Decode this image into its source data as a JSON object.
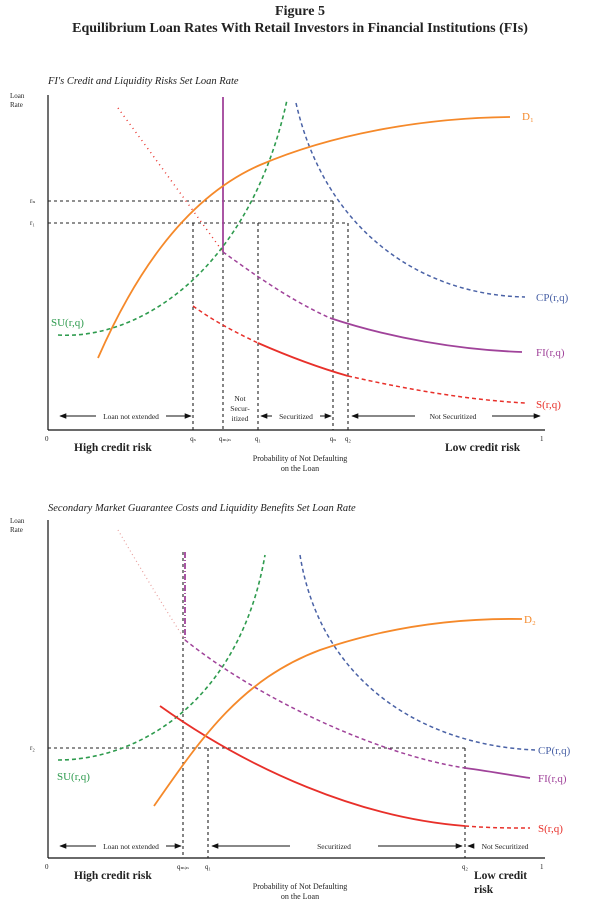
{
  "figure": {
    "title_line1": "Figure 5",
    "title_line2": "Equilibrium Loan Rates With Retail Investors in Financial Institutions (FIs)"
  },
  "colors": {
    "demand": "#F5892A",
    "su": "#2E9B4E",
    "cp": "#4A62A6",
    "fi": "#A0439A",
    "s": "#E8302A",
    "guide": "#222222",
    "axis": "#111111"
  },
  "panel1": {
    "title": "FI's Credit and Liquidity Risks Set Loan Rate",
    "y_axis_label_1": "Loan",
    "y_axis_label_2": "Rate",
    "origin": "0",
    "x_end": "1",
    "r_labels": [
      "rₙ",
      "r₁"
    ],
    "q_labels": [
      "qₛ",
      "qₘᵢₙ",
      "q₁",
      "qₙ",
      "q₂"
    ],
    "regions": [
      "Loan not extended",
      "Not",
      "Secur-",
      "itized",
      "Securitized",
      "Not Securitized"
    ],
    "high_risk": "High credit risk",
    "low_risk": "Low credit risk",
    "x_axis_label_1": "Probability of Not Defaulting",
    "x_axis_label_2": "on the Loan",
    "curves": {
      "demand": "D₁",
      "su": "SU(r,q)",
      "cp": "CP(r,q)",
      "fi": "FI(r,q)",
      "s": "S(r,q)"
    }
  },
  "panel2": {
    "title": "Secondary Market Guarantee Costs and Liquidity Benefits Set Loan Rate",
    "y_axis_label_1": "Loan",
    "y_axis_label_2": "Rate",
    "origin": "0",
    "x_end": "1",
    "r_labels": [
      "r₂"
    ],
    "q_labels": [
      "qₘᵢₙ",
      "q₁",
      "q₂"
    ],
    "regions": [
      "Loan not extended",
      "Securitized",
      "Not Securitized"
    ],
    "high_risk": "High credit risk",
    "low_risk_1": "Low credit",
    "low_risk_2": "risk",
    "x_axis_label_1": "Probability of Not Defaulting",
    "x_axis_label_2": "on the Loan",
    "curves": {
      "demand": "D₂",
      "su": "SU(r,q)",
      "cp": "CP(r,q)",
      "fi": "FI(r,q)",
      "s": "S(r,q)"
    }
  }
}
